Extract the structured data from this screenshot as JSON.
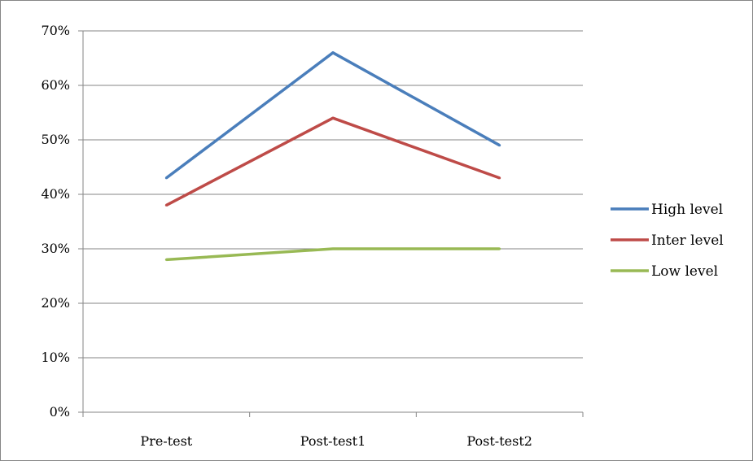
{
  "chart_data": {
    "type": "line",
    "title": "",
    "xlabel": "",
    "ylabel": "",
    "categories": [
      "Pre-test",
      "Post-test1",
      "Post-test2"
    ],
    "y_ticks": [
      "0%",
      "10%",
      "20%",
      "30%",
      "40%",
      "50%",
      "60%",
      "70%"
    ],
    "ylim": [
      0,
      70
    ],
    "grid": true,
    "legend": "right",
    "series": [
      {
        "name": "High level",
        "values": [
          43,
          66,
          49
        ],
        "color": "#4a7ebb"
      },
      {
        "name": "Inter level",
        "values": [
          38,
          54,
          43
        ],
        "color": "#be4b48"
      },
      {
        "name": "Low level",
        "values": [
          28,
          30,
          30
        ],
        "color": "#98b954"
      }
    ]
  }
}
